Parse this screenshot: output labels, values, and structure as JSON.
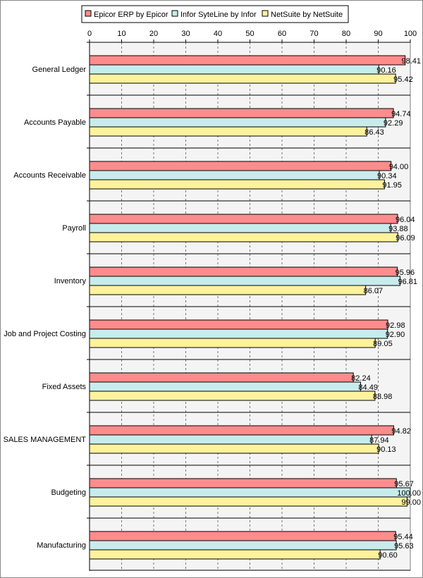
{
  "chart_data": {
    "type": "bar",
    "orientation": "horizontal",
    "categories": [
      "General Ledger",
      "Accounts Payable",
      "Accounts Receivable",
      "Payroll",
      "Inventory",
      "Job and Project Costing",
      "Fixed Assets",
      "SALES MANAGEMENT",
      "Budgeting",
      "Manufacturing"
    ],
    "series": [
      {
        "name": "Epicor ERP by Epicor",
        "color": "#ff8c8c",
        "values": [
          98.41,
          94.74,
          94.0,
          96.04,
          95.96,
          92.98,
          82.24,
          94.82,
          95.67,
          95.44
        ]
      },
      {
        "name": "Infor SyteLine by Infor",
        "color": "#c8ecec",
        "values": [
          90.16,
          92.29,
          90.34,
          93.88,
          96.81,
          92.9,
          84.49,
          87.94,
          100.0,
          95.63
        ]
      },
      {
        "name": "NetSuite by NetSuite",
        "color": "#fff29c",
        "values": [
          95.42,
          86.43,
          91.95,
          96.09,
          86.07,
          89.05,
          88.98,
          90.13,
          99.0,
          90.6
        ]
      }
    ],
    "xlim": [
      0,
      100
    ],
    "xticks": [
      "0",
      "10",
      "20",
      "30",
      "40",
      "50",
      "60",
      "70",
      "80",
      "90",
      "100"
    ],
    "axis_position": "top",
    "grid": true,
    "legend": "top"
  }
}
